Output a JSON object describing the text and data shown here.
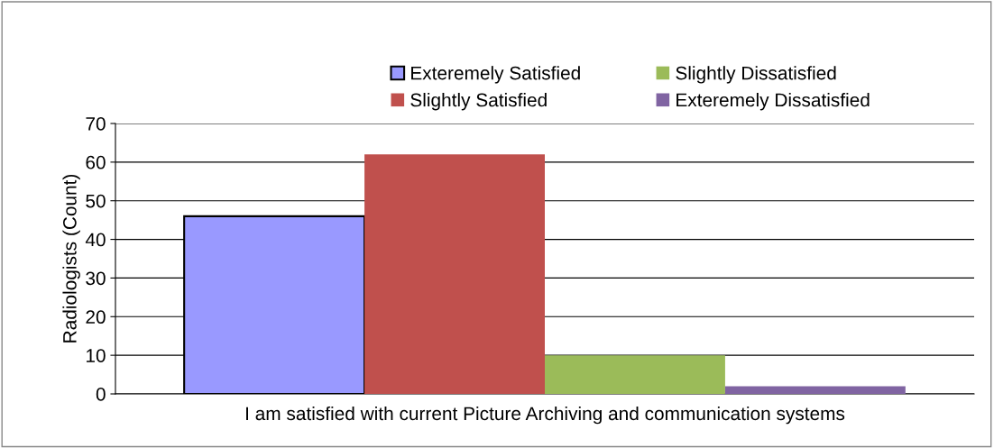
{
  "chart_data": {
    "type": "bar",
    "ylabel": "Radiologists (Count)",
    "categories": [
      "I am satisfied with current Picture Archiving and communication systems"
    ],
    "series": [
      {
        "name": "Exteremely Satisfied",
        "color": "#9999ff",
        "values": [
          46
        ]
      },
      {
        "name": "Slightly Satisfied",
        "color": "#c0504d",
        "values": [
          62
        ]
      },
      {
        "name": "Slightly Dissatisfied",
        "color": "#9bbb59",
        "values": [
          10
        ]
      },
      {
        "name": "Exteremely Dissatisfied",
        "color": "#8064a2",
        "values": [
          2
        ]
      }
    ],
    "ylim": [
      0,
      70
    ],
    "yticks": [
      0,
      10,
      20,
      30,
      40,
      50,
      60,
      70
    ],
    "grid": "y",
    "legend": "top"
  }
}
